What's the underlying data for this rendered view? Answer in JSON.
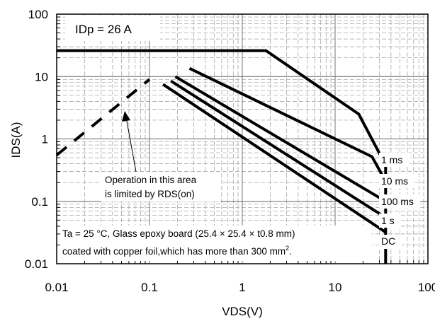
{
  "chart_data": {
    "type": "line",
    "xscale": "log",
    "yscale": "log",
    "xlim": [
      0.01,
      100
    ],
    "ylim": [
      0.01,
      100
    ],
    "xlabel": "VDS(V)",
    "ylabel": "IDS(A)",
    "x_ticks": [
      "0.01",
      "0.1",
      "1",
      "10",
      "100"
    ],
    "y_ticks": [
      "0.01",
      "0.1",
      "1",
      "10",
      "100"
    ],
    "grid": true,
    "idp_label": "IDp = 26 A",
    "series": [
      {
        "name": "1 ms",
        "style": "solid",
        "x": [
          0.01,
          1.8,
          18,
          35,
          35
        ],
        "y": [
          26,
          26,
          2.5,
          0.38,
          0.01
        ]
      },
      {
        "name": "10 ms",
        "style": "solid",
        "x": [
          0.27,
          25,
          35
        ],
        "y": [
          13.5,
          0.52,
          0.21
        ]
      },
      {
        "name": "100 ms",
        "style": "solid",
        "x": [
          0.19,
          35
        ],
        "y": [
          10,
          0.1
        ]
      },
      {
        "name": "1 s",
        "style": "solid",
        "x": [
          0.17,
          35
        ],
        "y": [
          8.5,
          0.055
        ]
      },
      {
        "name": "DC",
        "style": "solid",
        "x": [
          0.14,
          35
        ],
        "y": [
          7.5,
          0.032
        ]
      },
      {
        "name": "",
        "style": "dashed",
        "x": [
          0.01,
          0.1
        ],
        "y": [
          0.55,
          9.0
        ]
      }
    ],
    "annotations": {
      "rds_note_line1": "Operation in this area",
      "rds_note_line2": "is limited by RDS(on)",
      "board_note_line1": "Ta = 25 °C, Glass epoxy board (25.4 × 25.4 × t0.8 mm)",
      "board_note_line2": "coated with copper foil,which has more than 300 mm",
      "board_note_sup": "2",
      "board_note_end": "."
    }
  }
}
